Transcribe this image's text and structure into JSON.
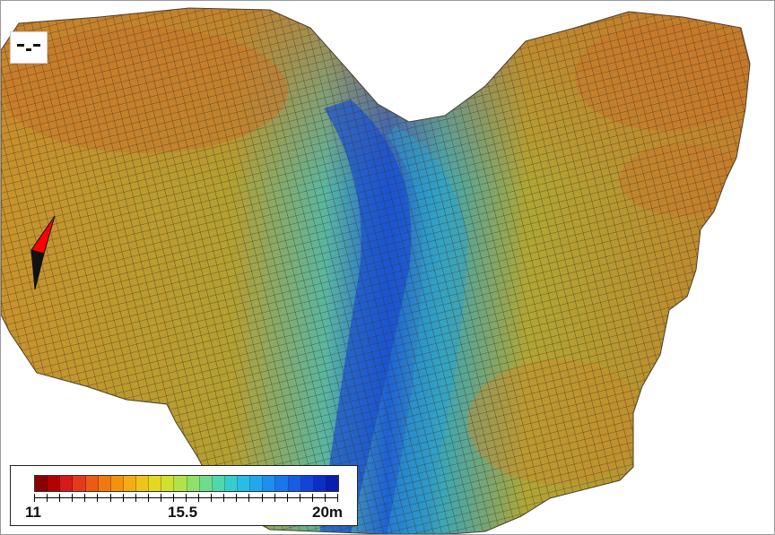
{
  "legend": {
    "min_label": "11",
    "mid_label": "15.5",
    "max_label": "20m",
    "min_value": 11,
    "mid_value": 15.5,
    "max_value": 20,
    "unit": "m",
    "colors": [
      "#8b0000",
      "#b40000",
      "#d61a1a",
      "#e5391c",
      "#ec5a14",
      "#f07a10",
      "#f2930e",
      "#f2ad12",
      "#eec418",
      "#e3d822",
      "#cfe02e",
      "#b0e24a",
      "#8fe06a",
      "#6edc8c",
      "#4fd7ad",
      "#36cdd0",
      "#27bde6",
      "#21a7ee",
      "#1d8ff0",
      "#1a76ed",
      "#165ce5",
      "#1244d8",
      "#0d2ec6",
      "#0a1db0"
    ]
  },
  "terrain": {
    "high_color": "#c47e2a",
    "mid_color": "#b2a530",
    "low_color": "#2f86c8",
    "deep_color": "#1650d2",
    "mesh_color": "#3a3324"
  },
  "compass": {
    "north_color": "#ff0000",
    "south_color": "#111111"
  },
  "icons": {
    "view_toggle": "view-mode-icon",
    "compass": "compass-icon"
  }
}
